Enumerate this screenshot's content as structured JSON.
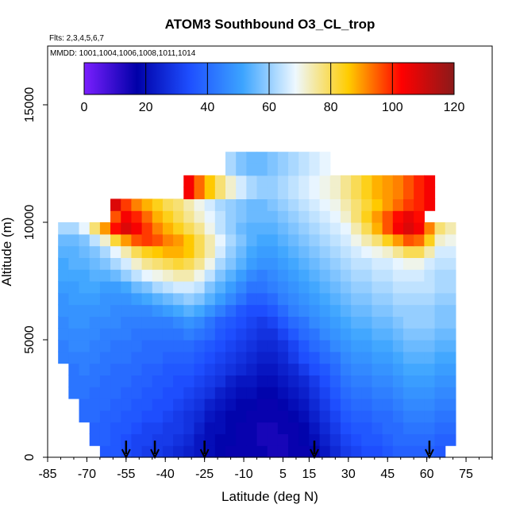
{
  "chart_data": {
    "type": "heatmap",
    "title": "ATOM3 Southbound O3_CL_trop",
    "flights_label": "Flts: 2,3,4,5,6,7",
    "mmdd_label": "MMDD: 1001,1004,1006,1008,1011,1014",
    "xlabel": "Latitude (deg N)",
    "ylabel": "Altitude (m)",
    "xlim": [
      -85,
      85
    ],
    "ylim": [
      0,
      17500
    ],
    "x_ticks": [
      -85,
      -70,
      -55,
      -40,
      -25,
      -10,
      5,
      15,
      30,
      45,
      60,
      75
    ],
    "x_tick_labels": [
      "-85",
      "-70",
      "-55",
      "-40",
      "-25",
      "-10",
      "5",
      "15",
      "30",
      "45",
      "60",
      "75"
    ],
    "y_ticks": [
      0,
      5000,
      10000,
      15000
    ],
    "y_tick_labels": [
      "0",
      "5000",
      "10000",
      "15000"
    ],
    "colorbar": {
      "min": 0,
      "max": 120,
      "ticks": [
        0,
        20,
        40,
        60,
        80,
        100,
        120
      ],
      "tick_labels": [
        "0",
        "20",
        "40",
        "60",
        "80",
        "100",
        "120"
      ],
      "colors": [
        "#7b1fff",
        "#0000a8",
        "#1e4fff",
        "#3ca4ff",
        "#eef8ff",
        "#ffcc00",
        "#ff0000",
        "#8b1a1a"
      ]
    },
    "flight_arrow_latitudes": [
      -55,
      -44,
      -25,
      17,
      61
    ],
    "lat_bins": [
      -83,
      -79,
      -75,
      -71,
      -67,
      -63,
      -59,
      -55,
      -51,
      -47,
      -43,
      -39,
      -35,
      -31,
      -27,
      -23,
      -19,
      -15,
      -11,
      -7,
      -3,
      1,
      5,
      9,
      13,
      17,
      21,
      25,
      29,
      33,
      37,
      41,
      45,
      49,
      53,
      57,
      61,
      65,
      69
    ],
    "alt_bins": [
      250,
      750,
      1250,
      1750,
      2250,
      2750,
      3250,
      3750,
      4250,
      4750,
      5250,
      5750,
      6250,
      6750,
      7250,
      7750,
      8250,
      8750,
      9250,
      9750,
      10250,
      10750,
      11250,
      11750,
      12250,
      12750
    ],
    "o3_grid": [
      [
        null,
        null,
        null,
        null,
        null,
        36,
        36,
        34,
        32,
        30,
        30,
        28,
        26,
        24,
        22,
        20,
        18,
        16,
        16,
        16,
        16,
        14,
        14,
        16,
        16,
        18,
        22,
        26,
        30,
        32,
        34,
        34,
        36,
        38,
        38,
        38,
        38,
        36,
        null
      ],
      [
        null,
        null,
        null,
        null,
        38,
        38,
        36,
        34,
        32,
        32,
        30,
        30,
        28,
        26,
        22,
        20,
        18,
        18,
        16,
        16,
        14,
        14,
        14,
        16,
        18,
        20,
        24,
        28,
        32,
        34,
        36,
        36,
        38,
        40,
        40,
        40,
        40,
        38,
        38
      ],
      [
        null,
        null,
        null,
        null,
        38,
        38,
        36,
        36,
        34,
        32,
        32,
        30,
        30,
        28,
        24,
        20,
        20,
        18,
        16,
        16,
        14,
        14,
        16,
        16,
        18,
        22,
        26,
        30,
        34,
        36,
        36,
        38,
        40,
        40,
        42,
        42,
        42,
        40,
        40
      ],
      [
        null,
        null,
        null,
        40,
        40,
        38,
        38,
        36,
        36,
        34,
        34,
        32,
        30,
        28,
        26,
        22,
        20,
        18,
        18,
        16,
        16,
        16,
        16,
        18,
        20,
        24,
        28,
        32,
        36,
        38,
        38,
        40,
        40,
        42,
        44,
        44,
        44,
        42,
        42
      ],
      [
        null,
        null,
        null,
        40,
        40,
        40,
        38,
        38,
        36,
        36,
        34,
        34,
        32,
        30,
        28,
        24,
        22,
        20,
        18,
        18,
        16,
        16,
        18,
        20,
        22,
        26,
        30,
        34,
        38,
        40,
        40,
        42,
        42,
        44,
        46,
        46,
        46,
        44,
        44
      ],
      [
        null,
        null,
        42,
        42,
        40,
        40,
        40,
        38,
        38,
        36,
        36,
        34,
        34,
        32,
        30,
        28,
        24,
        22,
        20,
        20,
        18,
        18,
        20,
        22,
        24,
        28,
        32,
        36,
        40,
        42,
        42,
        44,
        44,
        46,
        48,
        48,
        48,
        46,
        46
      ],
      [
        null,
        null,
        42,
        42,
        42,
        40,
        40,
        40,
        38,
        38,
        36,
        36,
        34,
        34,
        32,
        30,
        28,
        24,
        22,
        22,
        20,
        20,
        22,
        24,
        26,
        30,
        34,
        38,
        42,
        44,
        44,
        46,
        46,
        48,
        50,
        50,
        50,
        48,
        48
      ],
      [
        null,
        null,
        42,
        44,
        42,
        42,
        40,
        40,
        40,
        38,
        38,
        36,
        36,
        36,
        34,
        32,
        30,
        28,
        26,
        24,
        22,
        22,
        24,
        26,
        30,
        34,
        36,
        40,
        44,
        46,
        46,
        48,
        48,
        50,
        52,
        52,
        52,
        50,
        50
      ],
      [
        null,
        44,
        44,
        44,
        44,
        42,
        42,
        42,
        40,
        40,
        40,
        38,
        38,
        38,
        36,
        34,
        32,
        30,
        28,
        26,
        24,
        24,
        26,
        30,
        34,
        36,
        40,
        42,
        46,
        48,
        48,
        50,
        50,
        52,
        54,
        54,
        54,
        52,
        52
      ],
      [
        null,
        44,
        46,
        46,
        44,
        44,
        42,
        42,
        42,
        40,
        40,
        40,
        40,
        40,
        38,
        36,
        34,
        32,
        30,
        28,
        26,
        26,
        28,
        32,
        36,
        40,
        42,
        46,
        48,
        50,
        50,
        52,
        52,
        54,
        56,
        56,
        56,
        54,
        54
      ],
      [
        null,
        46,
        46,
        46,
        46,
        44,
        44,
        44,
        42,
        42,
        42,
        42,
        42,
        44,
        42,
        40,
        36,
        34,
        32,
        30,
        28,
        28,
        32,
        36,
        40,
        42,
        46,
        48,
        50,
        52,
        52,
        54,
        54,
        56,
        58,
        58,
        58,
        56,
        56
      ],
      [
        null,
        46,
        48,
        48,
        46,
        46,
        46,
        44,
        44,
        44,
        44,
        44,
        46,
        48,
        46,
        42,
        38,
        36,
        34,
        32,
        30,
        32,
        36,
        40,
        42,
        46,
        48,
        50,
        52,
        54,
        54,
        56,
        56,
        58,
        60,
        60,
        60,
        58,
        58
      ],
      [
        null,
        48,
        48,
        48,
        48,
        48,
        46,
        46,
        46,
        46,
        48,
        50,
        52,
        54,
        52,
        48,
        44,
        40,
        36,
        34,
        34,
        36,
        40,
        44,
        46,
        48,
        50,
        52,
        54,
        56,
        56,
        58,
        58,
        60,
        60,
        60,
        60,
        58,
        58
      ],
      [
        null,
        48,
        50,
        50,
        50,
        48,
        48,
        48,
        50,
        52,
        54,
        56,
        58,
        60,
        58,
        54,
        50,
        46,
        42,
        38,
        38,
        40,
        44,
        46,
        48,
        50,
        52,
        54,
        56,
        58,
        58,
        60,
        60,
        62,
        62,
        62,
        62,
        60,
        60
      ],
      [
        null,
        50,
        50,
        52,
        52,
        50,
        50,
        52,
        56,
        58,
        62,
        64,
        66,
        66,
        64,
        58,
        54,
        50,
        46,
        42,
        42,
        44,
        46,
        48,
        50,
        52,
        54,
        56,
        58,
        60,
        60,
        62,
        62,
        64,
        64,
        64,
        64,
        62,
        62
      ],
      [
        null,
        52,
        52,
        52,
        54,
        54,
        56,
        60,
        64,
        68,
        70,
        72,
        74,
        74,
        70,
        64,
        58,
        54,
        50,
        46,
        44,
        46,
        48,
        50,
        52,
        54,
        56,
        58,
        60,
        62,
        62,
        64,
        64,
        66,
        66,
        66,
        64,
        62,
        62
      ],
      [
        null,
        52,
        54,
        54,
        56,
        58,
        62,
        66,
        72,
        76,
        78,
        80,
        82,
        80,
        76,
        70,
        62,
        58,
        54,
        50,
        48,
        48,
        50,
        52,
        54,
        56,
        58,
        60,
        62,
        64,
        64,
        66,
        66,
        68,
        70,
        70,
        66,
        64,
        64
      ],
      [
        null,
        54,
        54,
        56,
        58,
        62,
        68,
        74,
        80,
        84,
        86,
        88,
        88,
        86,
        80,
        74,
        66,
        60,
        56,
        52,
        50,
        50,
        52,
        54,
        56,
        58,
        60,
        62,
        64,
        66,
        68,
        70,
        72,
        76,
        80,
        80,
        74,
        66,
        66
      ],
      [
        null,
        56,
        56,
        58,
        64,
        72,
        82,
        90,
        96,
        98,
        96,
        92,
        90,
        86,
        80,
        74,
        68,
        62,
        58,
        54,
        52,
        52,
        54,
        56,
        58,
        60,
        62,
        64,
        66,
        70,
        74,
        78,
        84,
        90,
        96,
        94,
        84,
        72,
        70
      ],
      [
        null,
        62,
        62,
        68,
        78,
        90,
        102,
        108,
        104,
        98,
        92,
        88,
        84,
        80,
        76,
        70,
        64,
        60,
        56,
        54,
        54,
        54,
        56,
        58,
        60,
        62,
        64,
        66,
        68,
        74,
        80,
        88,
        96,
        104,
        108,
        104,
        92,
        78,
        74
      ],
      [
        null,
        null,
        null,
        null,
        null,
        null,
        96,
        104,
        100,
        94,
        88,
        84,
        80,
        76,
        72,
        68,
        64,
        60,
        58,
        56,
        56,
        56,
        58,
        60,
        62,
        64,
        66,
        68,
        72,
        78,
        84,
        90,
        96,
        102,
        106,
        102,
        null,
        null,
        null
      ],
      [
        null,
        null,
        null,
        null,
        null,
        null,
        108,
        98,
        92,
        88,
        84,
        80,
        78,
        74,
        70,
        66,
        62,
        60,
        58,
        56,
        56,
        58,
        60,
        62,
        64,
        66,
        68,
        70,
        74,
        78,
        82,
        86,
        90,
        94,
        98,
        100,
        104,
        null,
        null
      ],
      [
        null,
        null,
        null,
        null,
        null,
        null,
        null,
        null,
        null,
        null,
        null,
        null,
        null,
        104,
        94,
        86,
        78,
        72,
        66,
        62,
        60,
        60,
        62,
        64,
        66,
        68,
        70,
        72,
        76,
        80,
        84,
        88,
        90,
        92,
        96,
        100,
        104,
        null,
        null
      ],
      [
        null,
        null,
        null,
        null,
        null,
        null,
        null,
        null,
        null,
        null,
        null,
        null,
        null,
        104,
        94,
        86,
        78,
        72,
        66,
        62,
        60,
        60,
        62,
        64,
        66,
        68,
        70,
        72,
        76,
        80,
        84,
        88,
        90,
        92,
        96,
        100,
        104,
        null,
        null
      ],
      [
        null,
        null,
        null,
        null,
        null,
        null,
        null,
        null,
        null,
        null,
        null,
        null,
        null,
        null,
        null,
        null,
        null,
        62,
        58,
        56,
        56,
        58,
        60,
        62,
        64,
        66,
        68,
        null,
        null,
        null,
        null,
        null,
        null,
        null,
        null,
        null,
        null,
        null,
        null
      ],
      [
        null,
        null,
        null,
        null,
        null,
        null,
        null,
        null,
        null,
        null,
        null,
        null,
        null,
        null,
        null,
        null,
        null,
        62,
        58,
        56,
        56,
        58,
        60,
        62,
        64,
        66,
        68,
        null,
        null,
        null,
        null,
        null,
        null,
        null,
        null,
        null,
        null,
        null,
        null
      ]
    ]
  }
}
